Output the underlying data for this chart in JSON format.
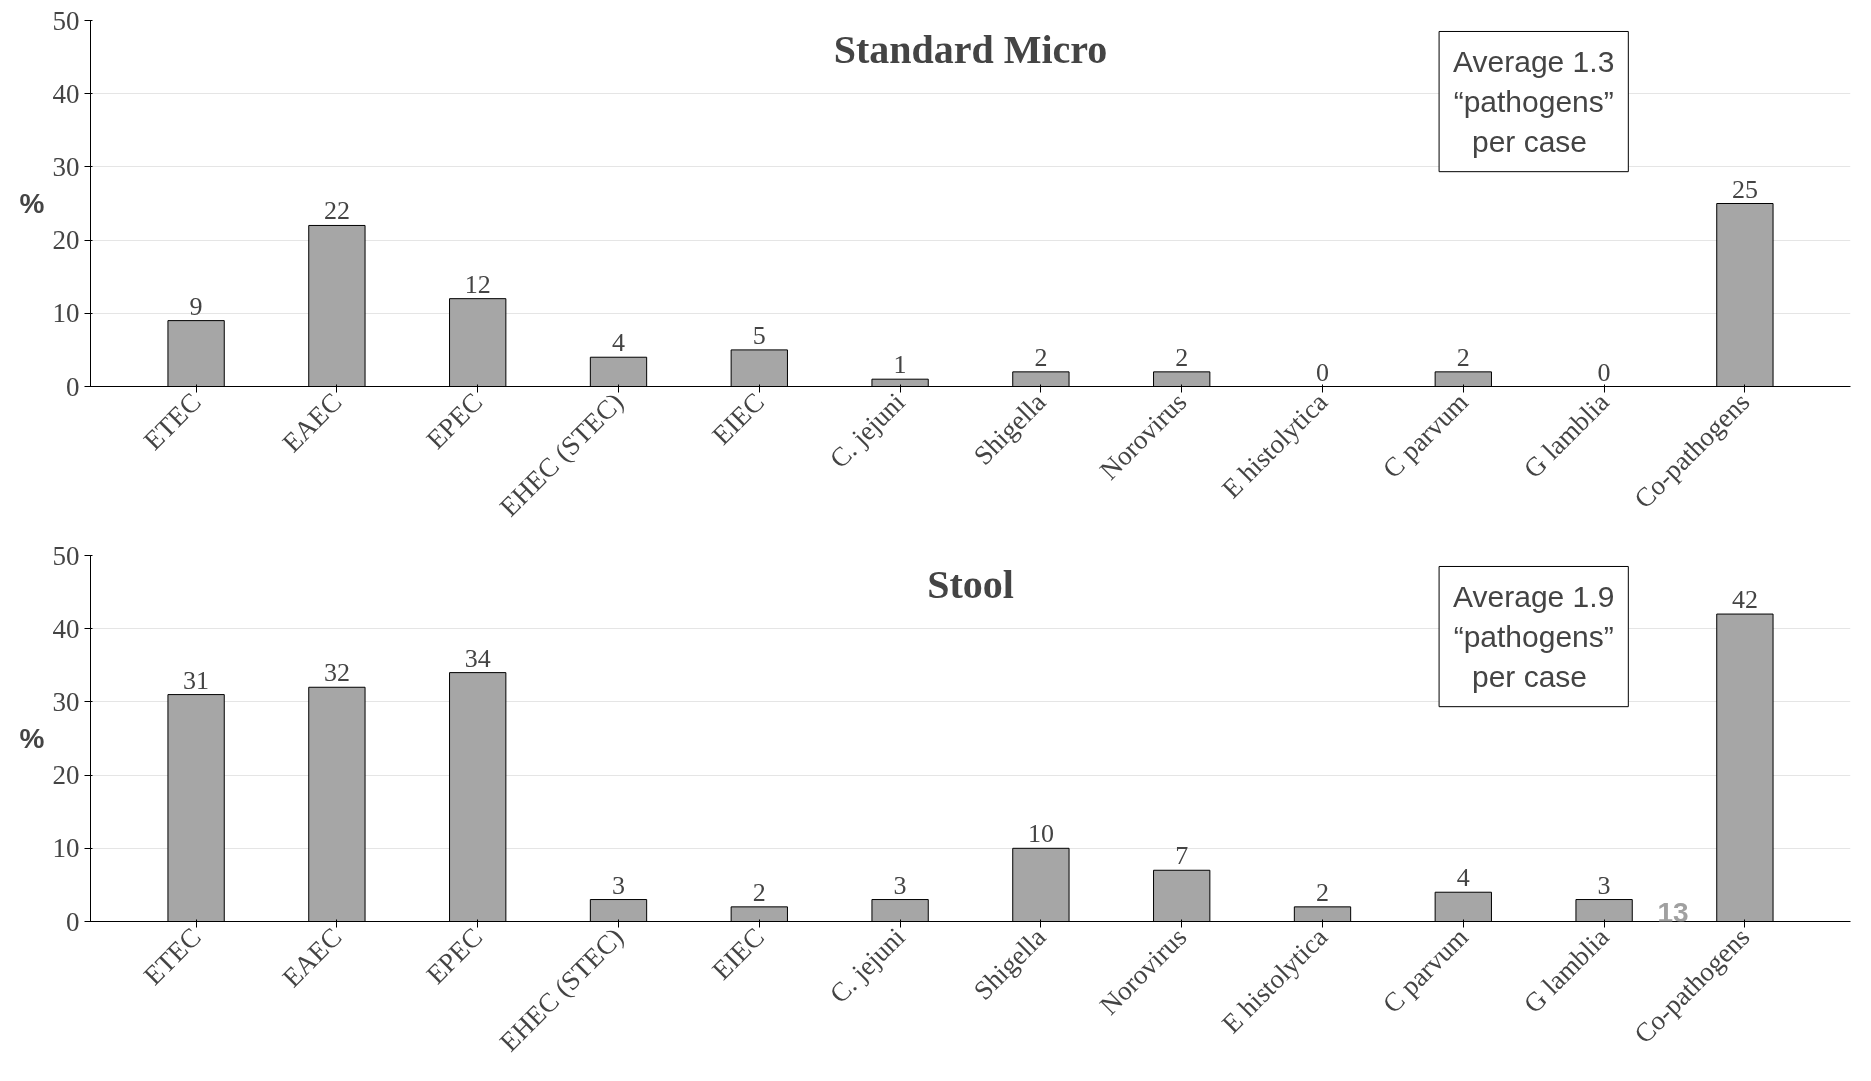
{
  "chart_data": [
    {
      "type": "bar",
      "title": "Standard Micro",
      "ylabel": "%",
      "categories": [
        "ETEC",
        "EAEC",
        "EPEC",
        "EHEC (STEC)",
        "EIEC",
        "C. jejuni",
        "Shigella",
        "Norovirus",
        "E histolytica",
        "C parvum",
        "G lamblia",
        "Co-pathogens"
      ],
      "values": [
        9,
        22,
        12,
        4,
        5,
        1,
        2,
        2,
        0,
        2,
        0,
        25
      ],
      "color": "#a6a6a6",
      "ylim": [
        0,
        50
      ],
      "yticks": [
        0,
        10,
        20,
        30,
        40,
        50
      ],
      "grid": "y",
      "data_labels": true,
      "annotations": [
        "Average 1.3\n“pathogens”\nper  case"
      ]
    },
    {
      "type": "bar",
      "title": "Stool",
      "ylabel": "%",
      "categories": [
        "ETEC",
        "EAEC",
        "EPEC",
        "EHEC (STEC)",
        "EIEC",
        "C. jejuni",
        "Shigella",
        "Norovirus",
        "E histolytica",
        "C parvum",
        "G lamblia",
        "Co-pathogens"
      ],
      "values": [
        31,
        32,
        34,
        3,
        2,
        3,
        10,
        7,
        2,
        4,
        3,
        42
      ],
      "color": "#a6a6a6",
      "ylim": [
        0,
        50
      ],
      "yticks": [
        0,
        10,
        20,
        30,
        40,
        50
      ],
      "grid": "y",
      "data_labels": true,
      "annotations": [
        "Average 1.9\n“pathogens”\nper  case",
        "13"
      ]
    }
  ]
}
